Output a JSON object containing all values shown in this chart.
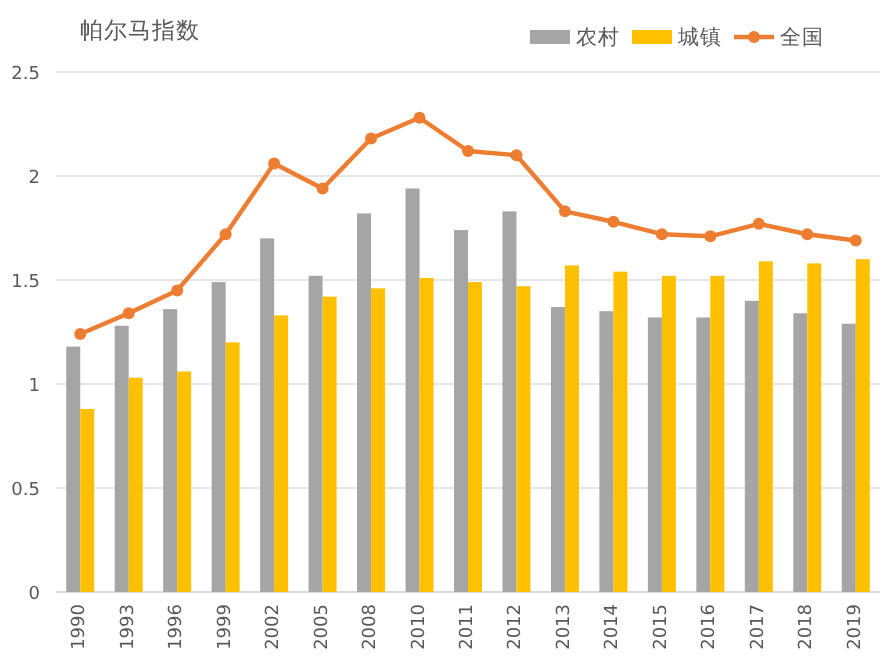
{
  "chart_data": {
    "type": "bar",
    "title": "帕尔马指数",
    "categories": [
      "1990",
      "1993",
      "1996",
      "1999",
      "2002",
      "2005",
      "2008",
      "2010",
      "2011",
      "2012",
      "2013",
      "2014",
      "2015",
      "2016",
      "2017",
      "2018",
      "2019"
    ],
    "series": [
      {
        "name": "农村",
        "color": "#a5a5a5",
        "values": [
          1.18,
          1.28,
          1.36,
          1.49,
          1.7,
          1.52,
          1.82,
          1.94,
          1.74,
          1.83,
          1.37,
          1.35,
          1.32,
          1.32,
          1.4,
          1.34,
          1.29
        ]
      },
      {
        "name": "城镇",
        "color": "#ffc000",
        "values": [
          0.88,
          1.03,
          1.06,
          1.2,
          1.33,
          1.42,
          1.46,
          1.51,
          1.49,
          1.47,
          1.57,
          1.54,
          1.52,
          1.52,
          1.59,
          1.58,
          1.6
        ]
      },
      {
        "name": "全国",
        "color": "#ed7d31",
        "type": "line",
        "marker": "circle",
        "values": [
          1.24,
          1.34,
          1.45,
          1.72,
          2.06,
          1.94,
          2.18,
          2.28,
          2.12,
          2.1,
          1.83,
          1.78,
          1.72,
          1.71,
          1.77,
          1.72,
          1.69
        ]
      }
    ],
    "ylim": [
      0,
      2.5
    ],
    "yticks": [
      0,
      0.5,
      1,
      1.5,
      2,
      2.5
    ],
    "grid": "y",
    "legend": "top right"
  }
}
